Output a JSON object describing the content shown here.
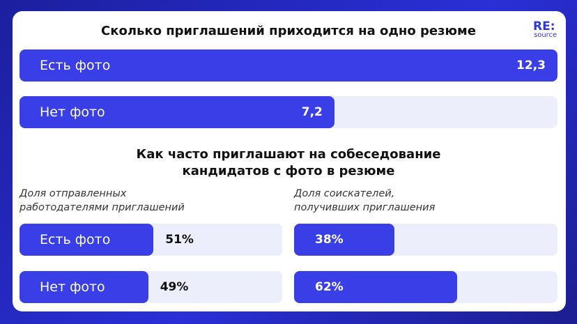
{
  "logo": {
    "line1": "RE:",
    "line2": "source"
  },
  "chart_data": [
    {
      "type": "bar",
      "orientation": "horizontal",
      "title": "Сколько приглашений приходится на одно резюме",
      "categories": [
        "Есть фото",
        "Нет фото"
      ],
      "values": [
        12.3,
        7.2
      ],
      "value_labels": [
        "12,3",
        "7,2"
      ],
      "xlim": [
        0,
        12.3
      ],
      "color": "#3a3ee6"
    },
    {
      "type": "bar",
      "orientation": "horizontal",
      "title": "Как часто приглашают на собеседование\nкандидатов с фото в резюме",
      "subtitle": "Доля отправленных\nработодателями приглашений",
      "categories": [
        "Есть фото",
        "Нет фото"
      ],
      "values": [
        51,
        49
      ],
      "value_labels": [
        "51%",
        "49%"
      ],
      "xlim": [
        0,
        100
      ],
      "color": "#3a3ee6"
    },
    {
      "type": "bar",
      "orientation": "horizontal",
      "subtitle": "Доля соискателей,\nполучивших приглашения",
      "categories": [
        null,
        null
      ],
      "values": [
        38,
        62
      ],
      "value_labels": [
        "38%",
        "62%"
      ],
      "xlim": [
        0,
        100
      ],
      "color": "#3a3ee6"
    }
  ]
}
